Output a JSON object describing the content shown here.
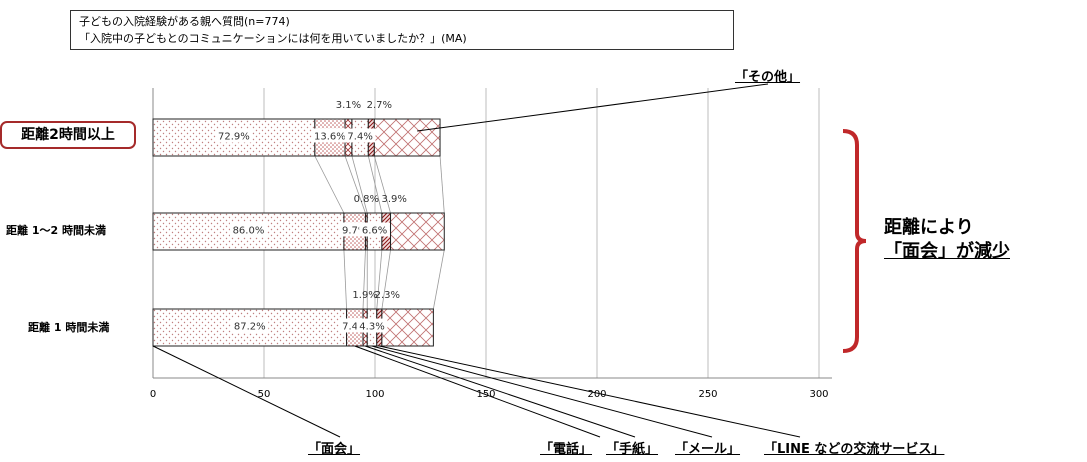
{
  "title_box": {
    "line1": "子どもの入院経験がある親へ質問(n=774)",
    "line2": "「入院中の子どもとのコミュニケーションには何を用いていましたか？」(MA)"
  },
  "chart_data": {
    "type": "bar",
    "orientation": "horizontal",
    "stacked": true,
    "categories": [
      "距離2時間以上",
      "距離 1～2 時間未満",
      "距離 1 時間未満"
    ],
    "xlim": [
      0,
      300
    ],
    "xticks": [
      0,
      50,
      100,
      150,
      200,
      250,
      300
    ],
    "grid": true,
    "series": [
      {
        "name": "「面会」",
        "values": [
          72.9,
          86.0,
          87.2
        ],
        "labels": [
          "72.9%",
          "86.0%",
          "87.2%"
        ]
      },
      {
        "name": "「電話」",
        "values": [
          13.6,
          9.7,
          7.4
        ],
        "labels": [
          "13.6%",
          "9.7%",
          "7.4%"
        ]
      },
      {
        "name": "「手紙」",
        "values": [
          3.1,
          0.8,
          1.9
        ],
        "labels": [
          "3.1%",
          "0.8%",
          "1.9%"
        ]
      },
      {
        "name": "「メール」",
        "values": [
          7.4,
          6.6,
          4.3
        ],
        "labels": [
          "7.4%",
          "6.6%",
          "4.3%"
        ]
      },
      {
        "name": "「LINE などの交流サービス」",
        "values": [
          2.7,
          3.9,
          2.3
        ],
        "labels": [
          "2.7%",
          "3.9%",
          "2.3%"
        ]
      },
      {
        "name": "「その他」",
        "values": [
          29.6,
          24.2,
          23.2
        ],
        "labels": [
          "",
          "",
          ""
        ]
      }
    ],
    "annotation": {
      "line1": "距離により",
      "line2": "「面会」が減少"
    }
  },
  "colors": {
    "dots": "#c08080",
    "line": "#c06060",
    "bracket": "#c0282a",
    "hatch_dark": "#8b1a1a"
  }
}
